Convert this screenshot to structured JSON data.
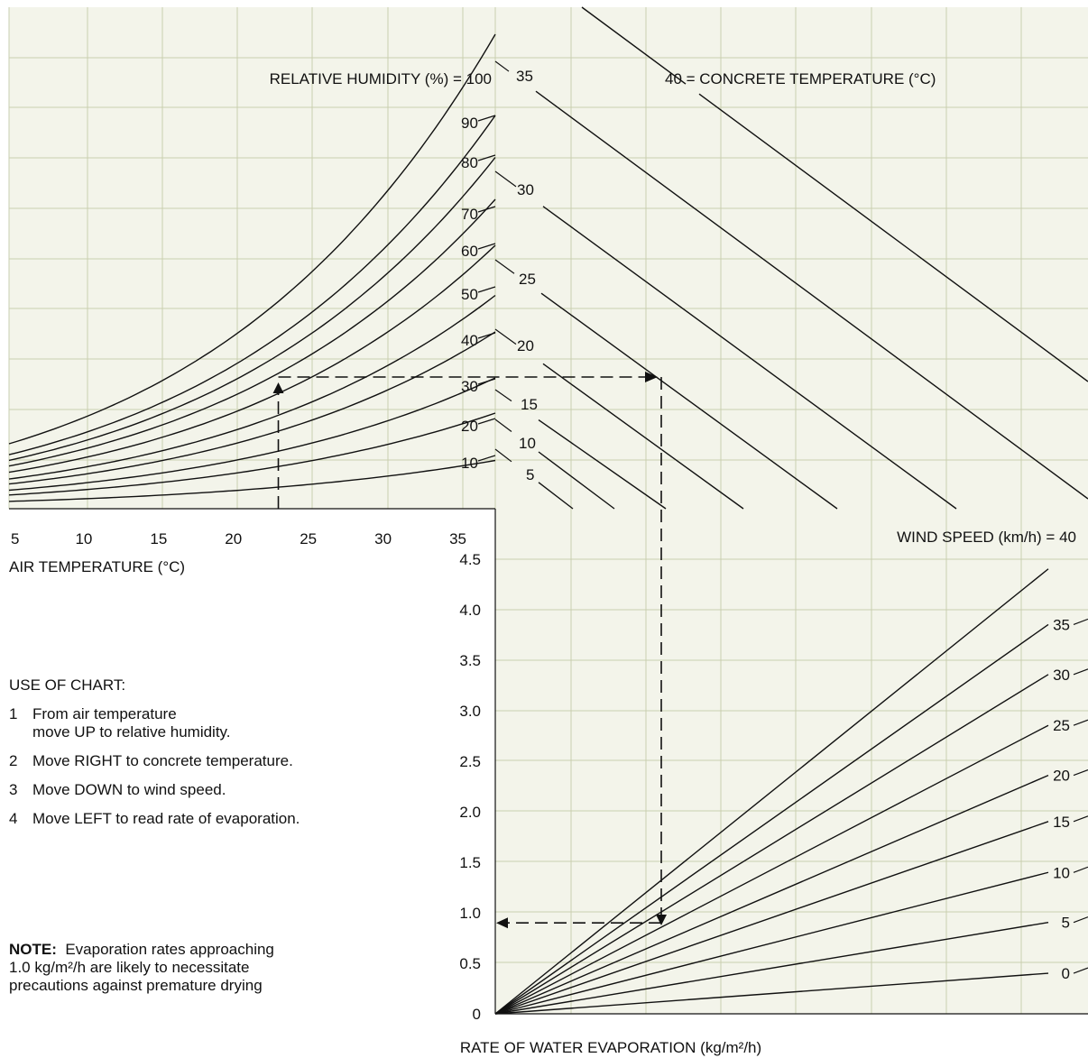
{
  "chart_data": {
    "type": "line",
    "title": "",
    "panels": [
      {
        "id": "air-temperature-humidity",
        "xlabel": "AIR TEMPERATURE (°C)",
        "x_ticks": [
          5,
          10,
          15,
          20,
          25,
          30,
          35
        ],
        "xlim": [
          5,
          37.5
        ],
        "curve_title": "RELATIVE HUMIDITY (%) =",
        "series": [
          {
            "name": "10",
            "ref_height_at_37_5C": 0.0946
          },
          {
            "name": "20",
            "ref_height_at_37_5C": 0.1892
          },
          {
            "name": "30",
            "ref_height_at_37_5C": 0.2595
          },
          {
            "name": "40",
            "ref_height_at_37_5C": 0.3514
          },
          {
            "name": "50",
            "ref_height_at_37_5C": 0.4243
          },
          {
            "name": "60",
            "ref_height_at_37_5C": 0.5243
          },
          {
            "name": "70",
            "ref_height_at_37_5C": 0.6162
          },
          {
            "name": "80",
            "ref_height_at_37_5C": 0.7
          },
          {
            "name": "90",
            "ref_height_at_37_5C": 0.7838
          },
          {
            "name": "100",
            "ref_height_at_37_5C": 0.9459
          }
        ]
      },
      {
        "id": "concrete-temperature",
        "curve_title": "= CONCRETE TEMPERATURE (°C)",
        "series": [
          {
            "name": "5"
          },
          {
            "name": "10"
          },
          {
            "name": "15"
          },
          {
            "name": "20"
          },
          {
            "name": "25"
          },
          {
            "name": "30"
          },
          {
            "name": "35"
          },
          {
            "name": "40"
          }
        ]
      },
      {
        "id": "wind-speed-evaporation",
        "ylabel": "RATE OF WATER EVAPORATION (kg/m²/h)",
        "y_ticks": [
          "0",
          "0.5",
          "1.0",
          "1.5",
          "2.0",
          "2.5",
          "3.0",
          "3.5",
          "4.0",
          "4.5"
        ],
        "ylim": [
          0,
          4.5
        ],
        "curve_title": "WIND SPEED (km/h) =",
        "series": [
          {
            "name": "0",
            "y_at_right_edge": 0.43
          },
          {
            "name": "5",
            "y_at_right_edge": 0.97
          },
          {
            "name": "10",
            "y_at_right_edge": 1.5
          },
          {
            "name": "15",
            "y_at_right_edge": 2.04
          },
          {
            "name": "20",
            "y_at_right_edge": 2.53
          },
          {
            "name": "25",
            "y_at_right_edge": 3.06
          },
          {
            "name": "30",
            "y_at_right_edge": 3.6
          },
          {
            "name": "35",
            "y_at_right_edge": 4.13
          },
          {
            "name": "40",
            "y_at_right_edge": 4.72
          }
        ]
      }
    ],
    "example_path": {
      "air_temperature_c": 23,
      "evaporation_rate_kg_m2_h": 0.9
    }
  },
  "instructions": {
    "title": "USE OF CHART:",
    "steps": [
      {
        "num": "1",
        "text": "From air temperature\nmove UP to relative humidity."
      },
      {
        "num": "2",
        "text": "Move RIGHT to concrete temperature."
      },
      {
        "num": "3",
        "text": "Move DOWN to wind speed."
      },
      {
        "num": "4",
        "text": "Move LEFT to read rate of evaporation."
      }
    ]
  },
  "note": {
    "label": "NOTE:",
    "text": "Evaporation rates approaching 1.0 kg/m²/h are likely to necessitate precautions against premature drying"
  },
  "colors": {
    "panel_background": "#f3f4ea",
    "grid": "#c9cfb0",
    "ink": "#111111"
  }
}
